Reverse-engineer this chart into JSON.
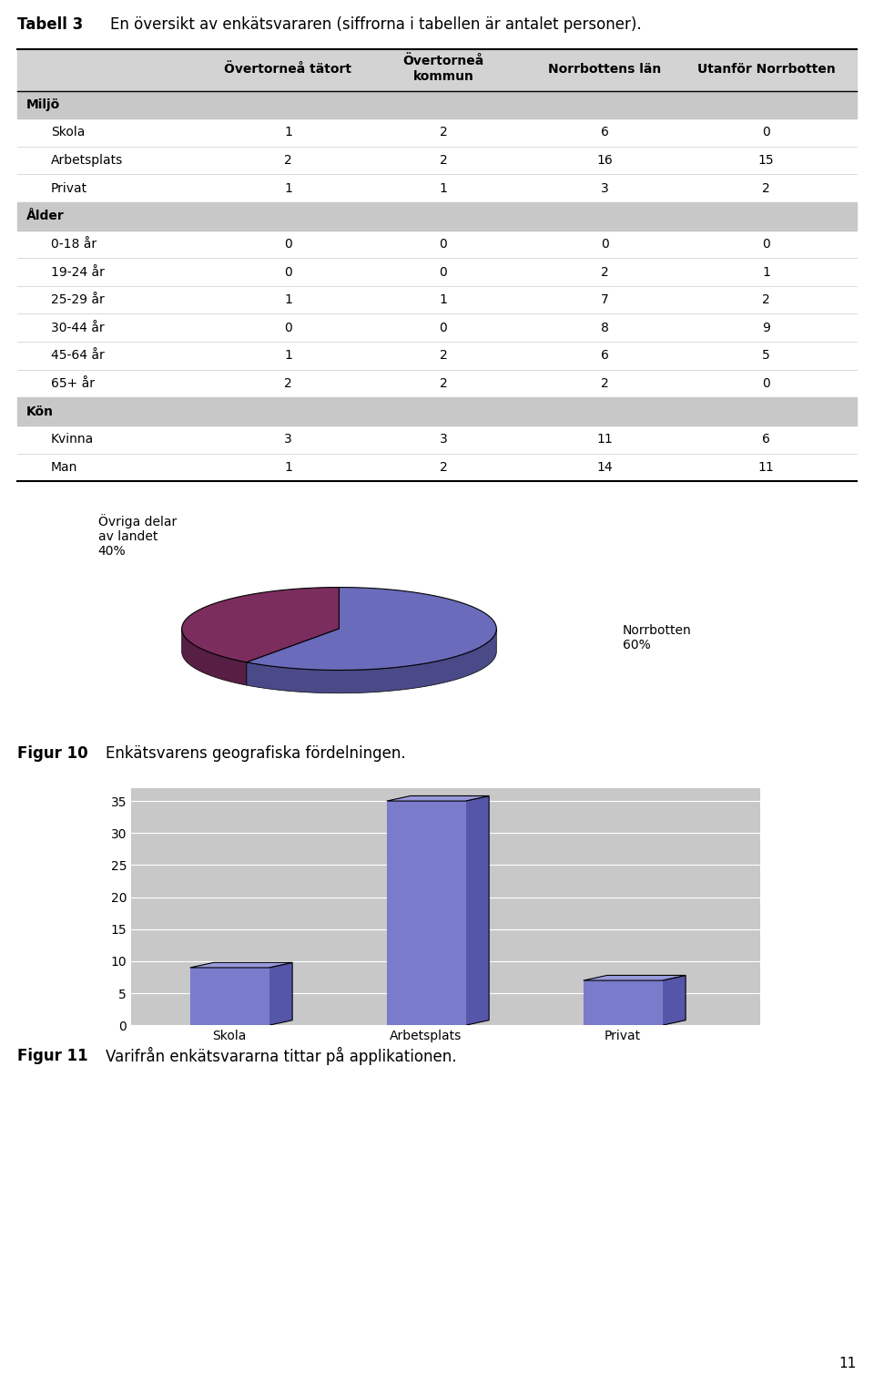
{
  "title": "Tabell 3",
  "title_desc": "En översikt av enkätsvararen (siffrorna i tabellen är antalet personer).",
  "col_headers": [
    "Övertorneå tätort",
    "Övertorneå\nkommun",
    "Norrbottens län",
    "Utanför Norrbotten"
  ],
  "sections": [
    {
      "name": "Miljö",
      "rows": [
        {
          "label": "Skola",
          "values": [
            1,
            2,
            6,
            0
          ]
        },
        {
          "label": "Arbetsplats",
          "values": [
            2,
            2,
            16,
            15
          ]
        },
        {
          "label": "Privat",
          "values": [
            1,
            1,
            3,
            2
          ]
        }
      ]
    },
    {
      "name": "Ålder",
      "rows": [
        {
          "label": "0-18 år",
          "values": [
            0,
            0,
            0,
            0
          ]
        },
        {
          "label": "19-24 år",
          "values": [
            0,
            0,
            2,
            1
          ]
        },
        {
          "label": "25-29 år",
          "values": [
            1,
            1,
            7,
            2
          ]
        },
        {
          "label": "30-44 år",
          "values": [
            0,
            0,
            8,
            9
          ]
        },
        {
          "label": "45-64 år",
          "values": [
            1,
            2,
            6,
            5
          ]
        },
        {
          "label": "65+ år",
          "values": [
            2,
            2,
            2,
            0
          ]
        }
      ]
    },
    {
      "name": "Kön",
      "rows": [
        {
          "label": "Kvinna",
          "values": [
            3,
            3,
            11,
            6
          ]
        },
        {
          "label": "Man",
          "values": [
            1,
            2,
            14,
            11
          ]
        }
      ]
    }
  ],
  "pie_values": [
    40,
    60
  ],
  "pie_colors": [
    "#7B2D5E",
    "#6B6BBB"
  ],
  "pie_dark_colors": [
    "#561F43",
    "#4A4A88"
  ],
  "pie_label_left": "Övriga delar\nav landet\n40%",
  "pie_label_right": "Norrbotten\n60%",
  "fig10_caption": "Figur 10",
  "fig10_text": "Enkätsvarens geografiska fördelningen.",
  "bar_categories": [
    "Skola",
    "Arbetsplats",
    "Privat"
  ],
  "bar_values": [
    9,
    35,
    7
  ],
  "bar_color_face": "#7B7BCC",
  "bar_color_top": "#9999DD",
  "bar_color_side": "#5555AA",
  "bar_bg": "#C8C8C8",
  "bar_yticks": [
    0,
    5,
    10,
    15,
    20,
    25,
    30,
    35
  ],
  "fig11_caption": "Figur 11",
  "fig11_text": "Varifrån enkätsvararna tittar på applikationen.",
  "page_number": "11",
  "header_bg": "#D3D3D3",
  "section_bg": "#C8C8C8",
  "font_size_title": 12,
  "font_size_header": 10,
  "font_size_table": 10,
  "font_size_caption": 12
}
